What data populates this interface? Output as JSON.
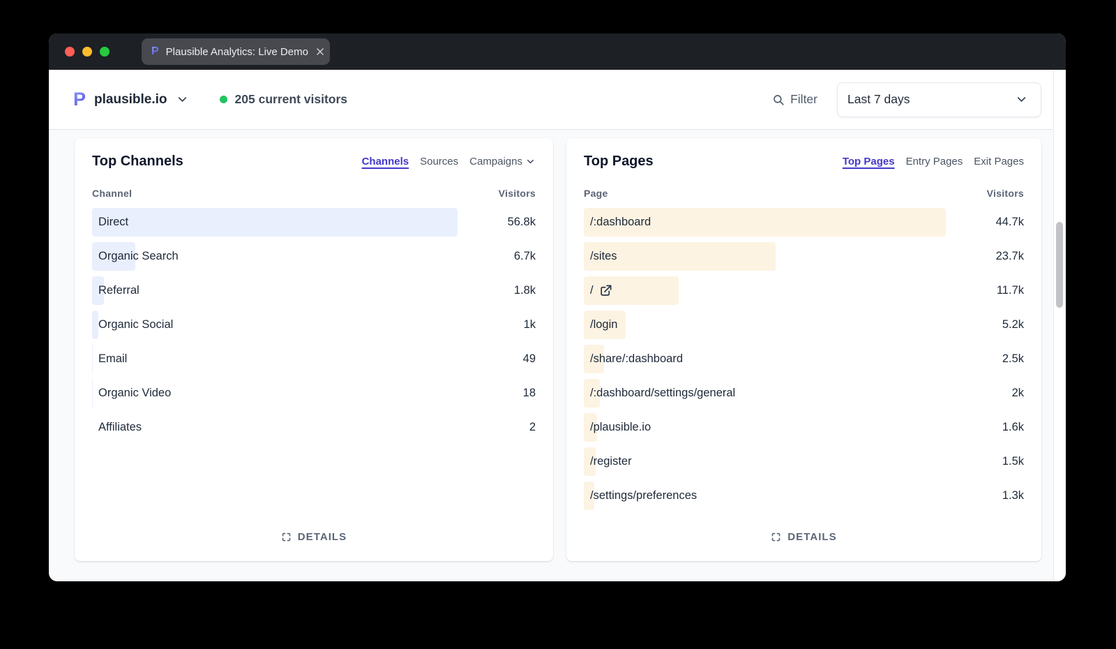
{
  "titlebar": {
    "tab_title": "Plausible Analytics: Live Demo"
  },
  "header": {
    "site_domain": "plausible.io",
    "visitors_text": "205 current visitors",
    "filter_label": "Filter",
    "date_range": "Last 7 days"
  },
  "channels_card": {
    "title": "Top Channels",
    "tabs": [
      {
        "label": "Channels",
        "active": true
      },
      {
        "label": "Sources",
        "active": false
      },
      {
        "label": "Campaigns",
        "active": false,
        "has_chevron": true
      }
    ],
    "columns": {
      "name": "Channel",
      "value": "Visitors"
    },
    "rows": [
      {
        "label": "Direct",
        "value": "56.8k",
        "numeric": 56800
      },
      {
        "label": "Organic Search",
        "value": "6.7k",
        "numeric": 6700
      },
      {
        "label": "Referral",
        "value": "1.8k",
        "numeric": 1800
      },
      {
        "label": "Organic Social",
        "value": "1k",
        "numeric": 1000
      },
      {
        "label": "Email",
        "value": "49",
        "numeric": 49
      },
      {
        "label": "Organic Video",
        "value": "18",
        "numeric": 18
      },
      {
        "label": "Affiliates",
        "value": "2",
        "numeric": 2
      }
    ],
    "details_label": "DETAILS"
  },
  "pages_card": {
    "title": "Top Pages",
    "tabs": [
      {
        "label": "Top Pages",
        "active": true
      },
      {
        "label": "Entry Pages",
        "active": false
      },
      {
        "label": "Exit Pages",
        "active": false
      }
    ],
    "columns": {
      "name": "Page",
      "value": "Visitors"
    },
    "rows": [
      {
        "label": "/:dashboard",
        "value": "44.7k",
        "numeric": 44700
      },
      {
        "label": "/sites",
        "value": "23.7k",
        "numeric": 23700
      },
      {
        "label": "/",
        "value": "11.7k",
        "numeric": 11700,
        "external_link": true
      },
      {
        "label": "/login",
        "value": "5.2k",
        "numeric": 5200
      },
      {
        "label": "/share/:dashboard",
        "value": "2.5k",
        "numeric": 2500
      },
      {
        "label": "/:dashboard/settings/general",
        "value": "2k",
        "numeric": 2000
      },
      {
        "label": "/plausible.io",
        "value": "1.6k",
        "numeric": 1600
      },
      {
        "label": "/register",
        "value": "1.5k",
        "numeric": 1500
      },
      {
        "label": "/settings/preferences",
        "value": "1.3k",
        "numeric": 1300
      }
    ],
    "details_label": "DETAILS"
  },
  "colors": {
    "accent_indigo": "#4338ca",
    "channel_bar": "#e9effc",
    "page_bar": "#fdf3e2",
    "online_dot": "#22c55e",
    "traffic_red": "#ff5f57",
    "traffic_yellow": "#febc2e",
    "traffic_green": "#27c93f"
  }
}
